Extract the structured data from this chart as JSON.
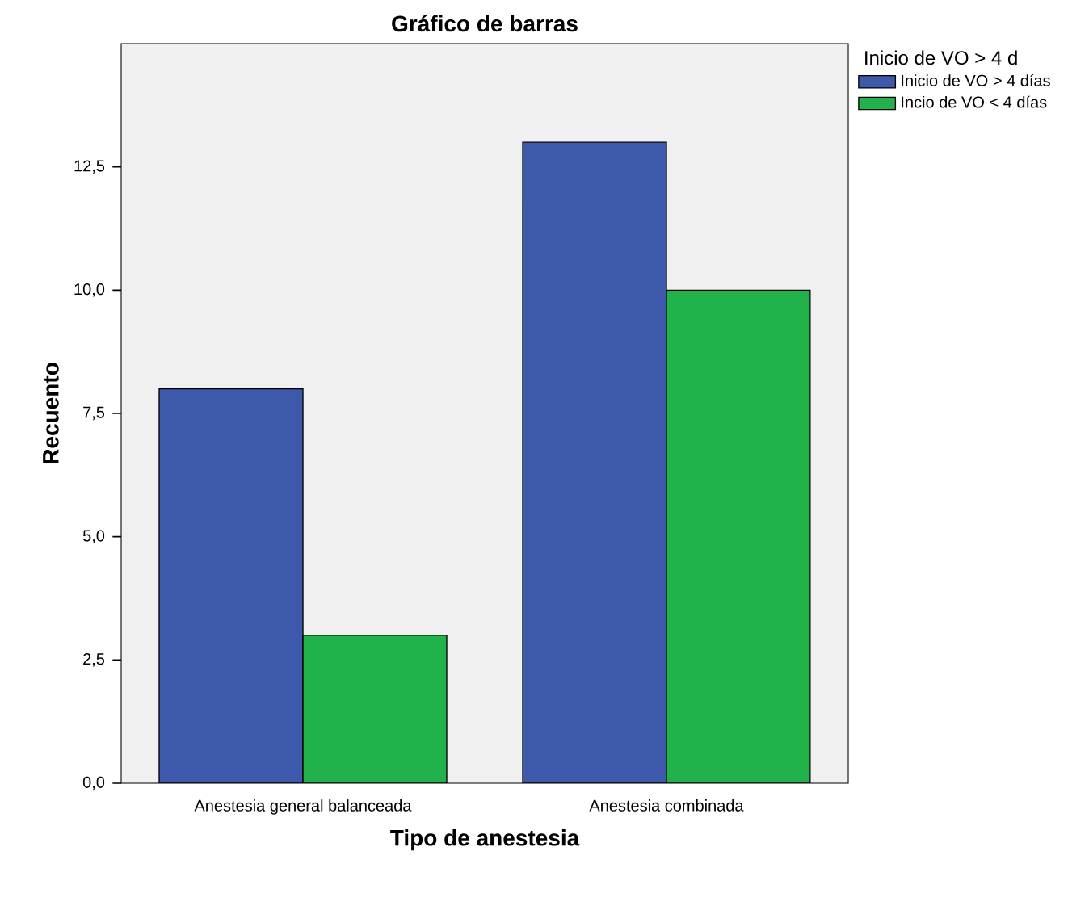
{
  "chart_data": {
    "type": "bar",
    "title": "Gráfico de barras",
    "xlabel": "Tipo de anestesia",
    "ylabel": "Recuento",
    "legend_title": "Inicio de VO > 4 d",
    "categories": [
      "Anestesia general balanceada",
      "Anestesia combinada"
    ],
    "series": [
      {
        "name": "Inicio de VO > 4 días",
        "color": "#3e58ac",
        "values": [
          8,
          13
        ]
      },
      {
        "name": "Incio de VO < 4 días",
        "color": "#22b24b",
        "values": [
          3,
          10
        ]
      }
    ],
    "ylim": [
      0,
      15
    ],
    "yticks": [
      {
        "value": 0,
        "label": "0,0"
      },
      {
        "value": 2.5,
        "label": "2,5"
      },
      {
        "value": 5,
        "label": "5,0"
      },
      {
        "value": 7.5,
        "label": "7,5"
      },
      {
        "value": 10,
        "label": "10,0"
      },
      {
        "value": 12.5,
        "label": "12,5"
      }
    ],
    "grid": false,
    "legend": "top right"
  }
}
